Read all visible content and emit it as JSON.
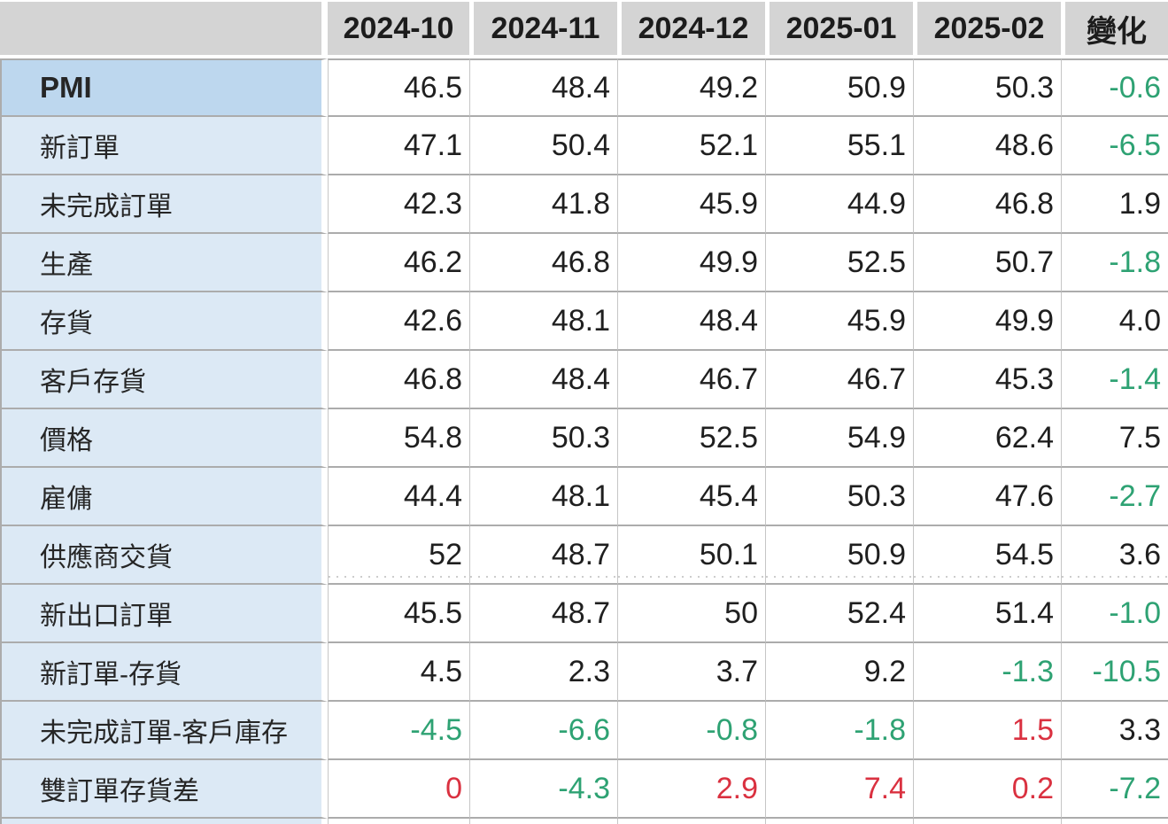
{
  "chart_data": {
    "type": "table",
    "columns": [
      "2024-10",
      "2024-11",
      "2024-12",
      "2025-01",
      "2025-02",
      "變化"
    ],
    "corner_label": "",
    "rows": [
      {
        "label": "PMI",
        "emphasis": true,
        "values": [
          "46.5",
          "48.4",
          "49.2",
          "50.9",
          "50.3",
          "-0.6"
        ],
        "value_colors": [
          "k",
          "k",
          "k",
          "k",
          "k",
          "g"
        ]
      },
      {
        "label": "新訂單",
        "values": [
          "47.1",
          "50.4",
          "52.1",
          "55.1",
          "48.6",
          "-6.5"
        ],
        "value_colors": [
          "k",
          "k",
          "k",
          "k",
          "k",
          "g"
        ]
      },
      {
        "label": "未完成訂單",
        "values": [
          "42.3",
          "41.8",
          "45.9",
          "44.9",
          "46.8",
          "1.9"
        ],
        "value_colors": [
          "k",
          "k",
          "k",
          "k",
          "k",
          "k"
        ]
      },
      {
        "label": "生產",
        "values": [
          "46.2",
          "46.8",
          "49.9",
          "52.5",
          "50.7",
          "-1.8"
        ],
        "value_colors": [
          "k",
          "k",
          "k",
          "k",
          "k",
          "g"
        ]
      },
      {
        "label": "存貨",
        "values": [
          "42.6",
          "48.1",
          "48.4",
          "45.9",
          "49.9",
          "4.0"
        ],
        "value_colors": [
          "k",
          "k",
          "k",
          "k",
          "k",
          "k"
        ]
      },
      {
        "label": "客戶存貨",
        "values": [
          "46.8",
          "48.4",
          "46.7",
          "46.7",
          "45.3",
          "-1.4"
        ],
        "value_colors": [
          "k",
          "k",
          "k",
          "k",
          "k",
          "g"
        ]
      },
      {
        "label": "價格",
        "values": [
          "54.8",
          "50.3",
          "52.5",
          "54.9",
          "62.4",
          "7.5"
        ],
        "value_colors": [
          "k",
          "k",
          "k",
          "k",
          "k",
          "k"
        ]
      },
      {
        "label": "雇傭",
        "values": [
          "44.4",
          "48.1",
          "45.4",
          "50.3",
          "47.6",
          "-2.7"
        ],
        "value_colors": [
          "k",
          "k",
          "k",
          "k",
          "k",
          "g"
        ]
      },
      {
        "label": "供應商交貨",
        "page_break_after": true,
        "values": [
          "52",
          "48.7",
          "50.1",
          "50.9",
          "54.5",
          "3.6"
        ],
        "value_colors": [
          "k",
          "k",
          "k",
          "k",
          "k",
          "k"
        ]
      },
      {
        "label": "新出口訂單",
        "values": [
          "45.5",
          "48.7",
          "50",
          "52.4",
          "51.4",
          "-1.0"
        ],
        "value_colors": [
          "k",
          "k",
          "k",
          "k",
          "k",
          "g"
        ]
      },
      {
        "label": "新訂單-存貨",
        "values": [
          "4.5",
          "2.3",
          "3.7",
          "9.2",
          "-1.3",
          "-10.5"
        ],
        "value_colors": [
          "k",
          "k",
          "k",
          "k",
          "g",
          "g"
        ]
      },
      {
        "label": "未完成訂單-客戶庫存",
        "values": [
          "-4.5",
          "-6.6",
          "-0.8",
          "-1.8",
          "1.5",
          "3.3"
        ],
        "value_colors": [
          "g",
          "g",
          "g",
          "g",
          "r",
          "k"
        ]
      },
      {
        "label": "雙訂單存貨差",
        "values": [
          "0",
          "-4.3",
          "2.9",
          "7.4",
          "0.2",
          "-7.2"
        ],
        "value_colors": [
          "r",
          "g",
          "r",
          "r",
          "r",
          "g"
        ]
      }
    ]
  },
  "colors": {
    "value_black": "#1f1f1f",
    "value_green": "#2EA273",
    "value_red": "#DA3140",
    "header_bg": "#D4D4D4",
    "row_label_bg": "#DCE9F5",
    "pmi_label_bg": "#BDD7EE",
    "grid_line": "#ACACAC"
  }
}
